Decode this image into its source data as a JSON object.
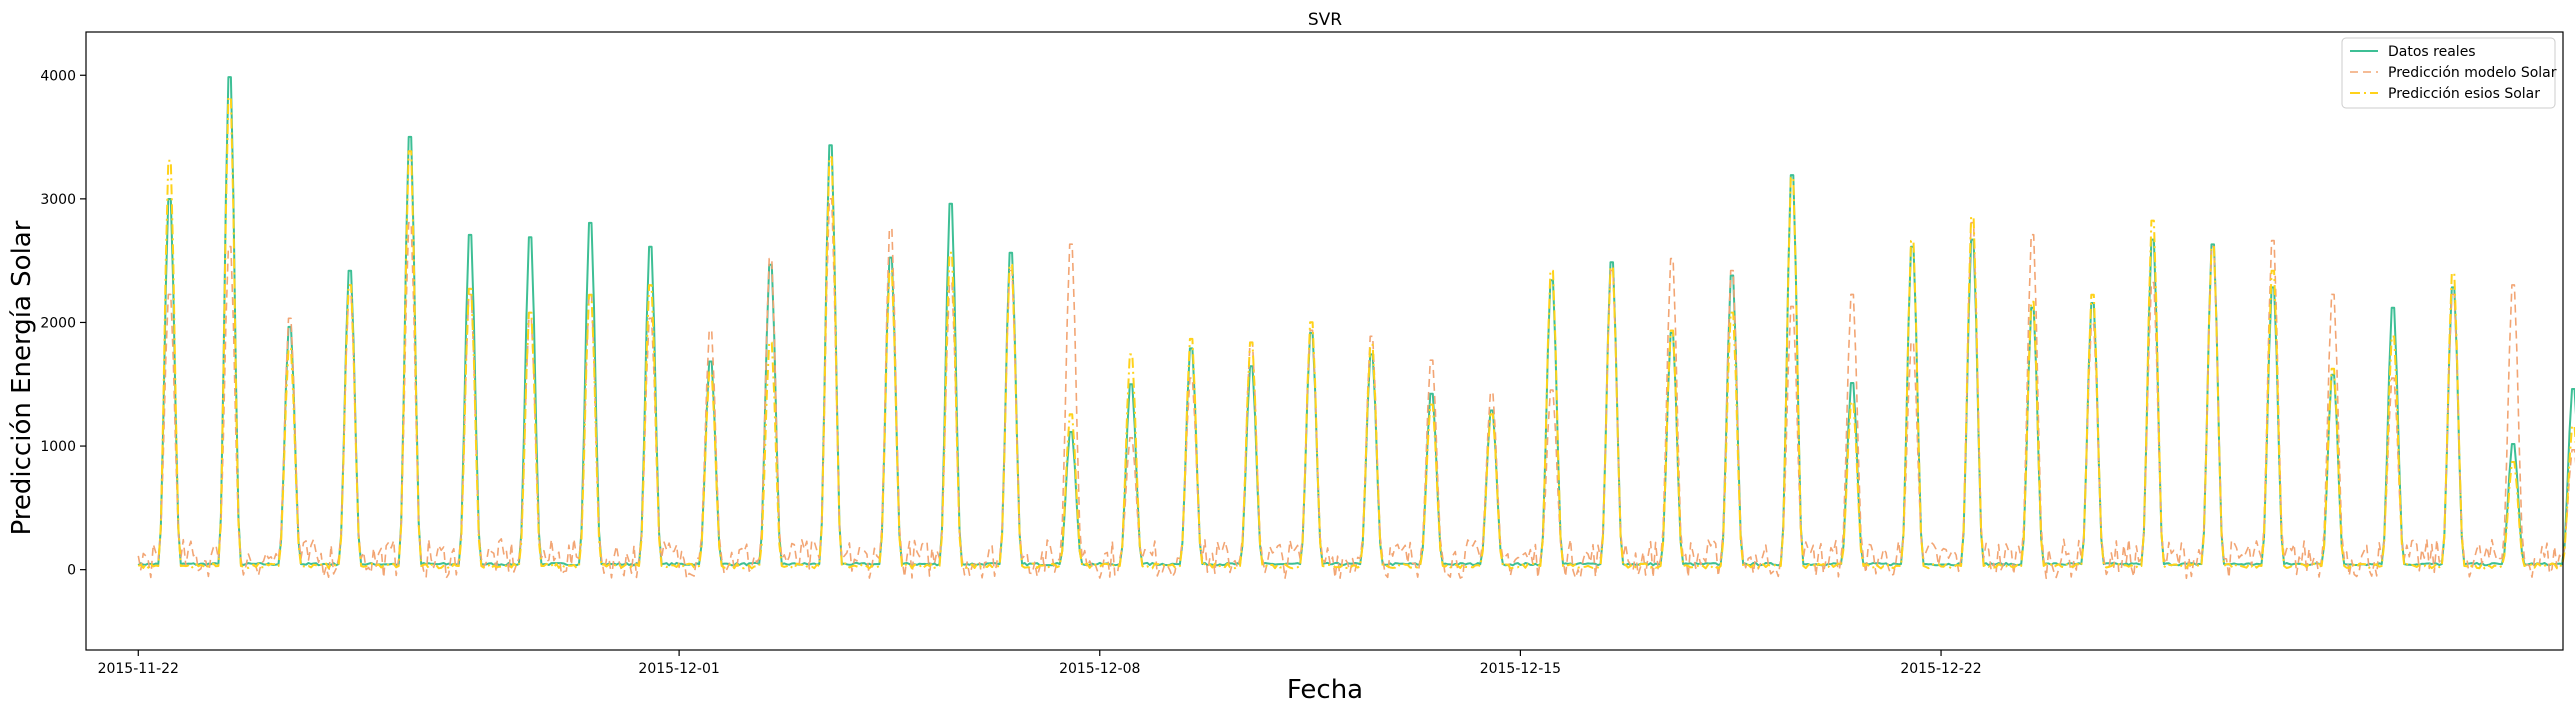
{
  "chart_data": {
    "type": "line",
    "title": "SVR",
    "xlabel": "Fecha",
    "ylabel": "Predicción Energía Solar",
    "ylim": [
      -650,
      4350
    ],
    "yticks": [
      0,
      1000,
      2000,
      3000,
      4000
    ],
    "xlim_days": [
      -0.87,
      40.35
    ],
    "xticks": [
      {
        "day": 0,
        "label": "2015-11-22"
      },
      {
        "day": 9,
        "label": "2015-12-01"
      },
      {
        "day": 16,
        "label": "2015-12-08"
      },
      {
        "day": 23,
        "label": "2015-12-15"
      },
      {
        "day": 30,
        "label": "2015-12-22"
      }
    ],
    "grid": false,
    "legend_placement": "top-right",
    "series": [
      {
        "name": "Datos reales",
        "color": "#3dbf95",
        "style": "solid",
        "peaks": [
          3100,
          4120,
          2030,
          2500,
          3620,
          2800,
          2780,
          2900,
          2700,
          1740,
          2550,
          3550,
          2610,
          3060,
          2650,
          1150,
          1550,
          1850,
          1700,
          1980,
          1800,
          1470,
          1330,
          2420,
          2570,
          1980,
          2460,
          3300,
          1560,
          2700,
          2760,
          2190,
          2230,
          2760,
          2720,
          2360,
          1630,
          2190,
          2360,
          1050,
          1510
        ],
        "base": 45
      },
      {
        "name": "Predicción modelo Solar",
        "color": "#f2a574",
        "style": "dashed",
        "peaks": [
          2300,
          2700,
          2100,
          2300,
          2900,
          2300,
          2100,
          2300,
          2100,
          2000,
          2600,
          3100,
          2850,
          2400,
          2500,
          2720,
          1100,
          1600,
          1900,
          2000,
          1950,
          1750,
          1480,
          1500,
          2500,
          2600,
          2500,
          2200,
          2300,
          1900,
          2900,
          2800,
          2050,
          2400,
          2700,
          2750,
          2300,
          1600,
          2300,
          2380,
          1000
        ],
        "base": 90
      },
      {
        "name": "Predicción esios Solar",
        "color": "#ffd21a",
        "style": "dashdot",
        "peaks": [
          3420,
          3950,
          1850,
          2380,
          3500,
          2350,
          2150,
          2300,
          2380,
          1650,
          1900,
          3450,
          2500,
          2650,
          2550,
          1300,
          1800,
          1930,
          1900,
          2070,
          1880,
          1380,
          1300,
          2500,
          2530,
          2000,
          2150,
          3280,
          1400,
          2750,
          2950,
          2240,
          2300,
          2920,
          2700,
          2500,
          1680,
          1950,
          2480,
          900,
          1200
        ],
        "base": 30
      }
    ]
  }
}
